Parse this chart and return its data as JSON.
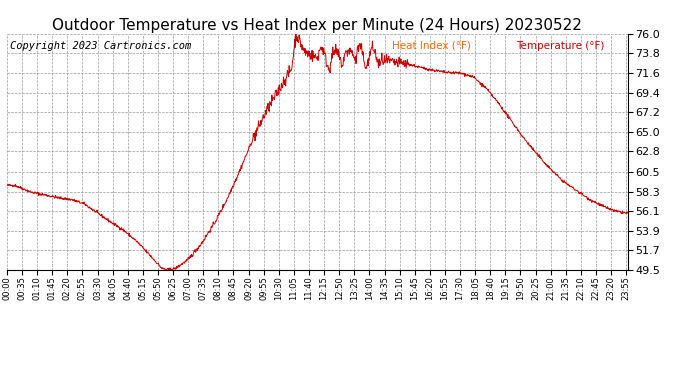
{
  "title": "Outdoor Temperature vs Heat Index per Minute (24 Hours) 20230522",
  "copyright": "Copyright 2023 Cartronics.com",
  "legend_heat": "Heat Index (°F)",
  "legend_temp": "Temperature (°F)",
  "legend_heat_color": "#ff6600",
  "legend_temp_color": "#cc0000",
  "line_color": "#cc0000",
  "background_color": "#ffffff",
  "grid_color": "#999999",
  "title_fontsize": 11,
  "copyright_fontsize": 7.5,
  "ylabel_right_fontsize": 8,
  "xlabel_fontsize": 6,
  "ylim": [
    49.5,
    76.0
  ],
  "yticks": [
    49.5,
    51.7,
    53.9,
    56.1,
    58.3,
    60.5,
    62.8,
    65.0,
    67.2,
    69.4,
    71.6,
    73.8,
    76.0
  ],
  "xtick_labels": [
    "00:00",
    "00:35",
    "01:10",
    "01:45",
    "02:20",
    "02:55",
    "03:30",
    "04:05",
    "04:40",
    "05:15",
    "05:50",
    "06:25",
    "07:00",
    "07:35",
    "08:10",
    "08:45",
    "09:20",
    "09:55",
    "10:30",
    "11:05",
    "11:40",
    "12:15",
    "12:50",
    "13:25",
    "14:00",
    "14:35",
    "15:10",
    "15:45",
    "16:20",
    "16:55",
    "17:30",
    "18:05",
    "18:40",
    "19:15",
    "19:50",
    "20:25",
    "21:00",
    "21:35",
    "22:10",
    "22:45",
    "23:20",
    "23:55"
  ],
  "n_minutes": 1440,
  "tick_step_minutes": 35
}
